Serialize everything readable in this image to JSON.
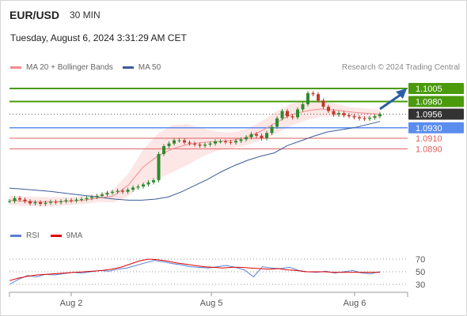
{
  "header": {
    "symbol": "EUR/USD",
    "interval": "30 MIN",
    "datetime": "Tuesday, August 6, 2024 3:31:29 AM CET",
    "credit": "Research © 2024 Trading Central"
  },
  "legend": {
    "ma20_label": "MA 20 + Bollinger Bands",
    "ma50_label": "MA 50",
    "rsi_label": "RSI",
    "rsi_ma_label": "9MA"
  },
  "colors": {
    "ma20": "#f28b8b",
    "ma50": "#3b5b9a",
    "bollinger_fill": "#fde3e3",
    "up_candle": "#2e8b2e",
    "down_candle": "#c0392b",
    "resistance": "#4a9a0c",
    "pivot": "#5b8def",
    "support": "#e06060",
    "current": "#333333",
    "arrow": "#2b5ea7",
    "rsi": "#5b7fd6",
    "rsi_ma": "#e00000"
  },
  "chart_data": [
    {
      "type": "candlestick",
      "x_labels": [
        "Aug 2",
        "Aug 5",
        "Aug 6"
      ],
      "ylim": [
        1.077,
        1.102
      ],
      "price_levels": [
        {
          "value": "1.1005",
          "role": "resistance"
        },
        {
          "value": "1.0980",
          "role": "resistance"
        },
        {
          "value": "1.0956",
          "role": "current"
        },
        {
          "value": "1.0930",
          "role": "pivot"
        },
        {
          "value": "1.0910",
          "role": "support"
        },
        {
          "value": "1.0890",
          "role": "support"
        }
      ],
      "close_series": [
        1.079,
        1.0796,
        1.0793,
        1.079,
        1.0786,
        1.0788,
        1.0785,
        1.0787,
        1.0789,
        1.0788,
        1.079,
        1.0792,
        1.0791,
        1.0793,
        1.0794,
        1.0796,
        1.0798,
        1.08,
        1.0803,
        1.0806,
        1.0808,
        1.081,
        1.0808,
        1.0812,
        1.0816,
        1.0818,
        1.0822,
        1.0826,
        1.083,
        1.088,
        1.0895,
        1.09,
        1.0906,
        1.0906,
        1.0902,
        1.09,
        1.0898,
        1.0896,
        1.0898,
        1.09,
        1.0904,
        1.0904,
        1.0903,
        1.0902,
        1.0905,
        1.0908,
        1.0912,
        1.0918,
        1.0915,
        1.091,
        1.092,
        1.0932,
        1.0948,
        1.0962,
        1.0952,
        1.095,
        1.0965,
        1.0975,
        1.0996,
        1.0994,
        1.0982,
        1.097,
        1.0962,
        1.0955,
        1.0958,
        1.0954,
        1.0952,
        1.095,
        1.0948,
        1.0947,
        1.0949,
        1.0952,
        1.0956
      ],
      "ma50_series": [
        1.0815,
        1.0813,
        1.0811,
        1.0809,
        1.0806,
        1.0803,
        1.08,
        1.0797,
        1.0794,
        1.0792,
        1.0792,
        1.0794,
        1.0798,
        1.0808,
        1.082,
        1.0832,
        1.0846,
        1.0858,
        1.0868,
        1.0876,
        1.0882,
        1.0896,
        1.0905,
        1.0914,
        1.0922,
        1.0926,
        1.093,
        1.0936,
        1.0942
      ],
      "ma20_series": [
        1.0792,
        1.079,
        1.0789,
        1.0789,
        1.079,
        1.0792,
        1.0796,
        1.08,
        1.082,
        1.0855,
        1.0876,
        1.089,
        1.0898,
        1.0902,
        1.0904,
        1.0906,
        1.0912,
        1.0924,
        1.094,
        1.0955,
        1.0962,
        1.0966,
        1.0964,
        1.096,
        1.0958,
        1.0956
      ],
      "arrow": "up-right toward 1.1005"
    },
    {
      "type": "line",
      "name": "RSI",
      "yticks": [
        70,
        50,
        30
      ],
      "rsi_values": [
        30,
        38,
        44,
        42,
        46,
        45,
        47,
        49,
        48,
        50,
        52,
        51,
        54,
        56,
        60,
        64,
        68,
        66,
        63,
        61,
        58,
        57,
        56,
        58,
        60,
        57,
        53,
        42,
        58,
        56,
        55,
        57,
        52,
        50,
        49,
        51,
        48,
        50,
        52,
        48,
        47,
        50
      ],
      "ma9_values": [
        36,
        40,
        43,
        45,
        46,
        47,
        48,
        49,
        50,
        51,
        52,
        54,
        57,
        62,
        67,
        70,
        69,
        67,
        64,
        62,
        60,
        58,
        57,
        56,
        57,
        57,
        56,
        55,
        54,
        55,
        53,
        52,
        50,
        50,
        50,
        49,
        49,
        49,
        49,
        49,
        49
      ]
    }
  ]
}
